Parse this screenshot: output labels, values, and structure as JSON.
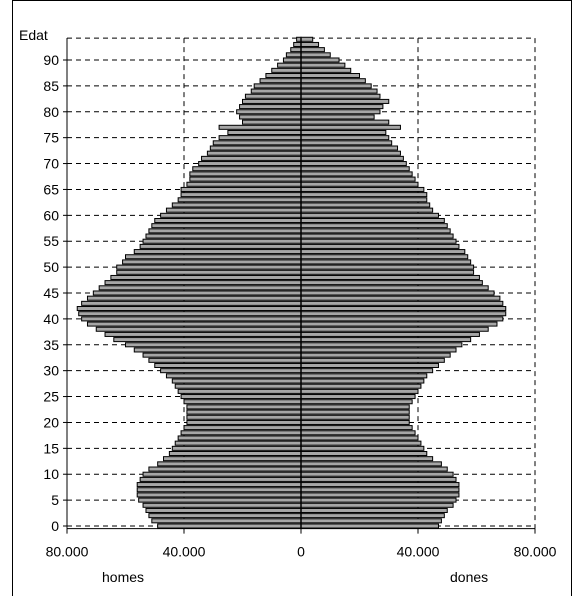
{
  "chart_data": {
    "type": "bar",
    "orientation": "horizontal-pyramid",
    "ylabel": "Edat",
    "xlabel_left": "homes",
    "xlabel_right": "dones",
    "x_tick_labels": [
      "80.000",
      "40.000",
      "0",
      "40.000",
      "80.000"
    ],
    "x_ticks": [
      -80000,
      -40000,
      0,
      40000,
      80000
    ],
    "y_tick_labels": [
      "0",
      "5",
      "10",
      "15",
      "20",
      "25",
      "30",
      "35",
      "40",
      "45",
      "50",
      "55",
      "60",
      "65",
      "70",
      "75",
      "80",
      "85",
      "90"
    ],
    "xlim": [
      -80000,
      80000
    ],
    "ylim": [
      0,
      95
    ],
    "grid": "dashed",
    "bar_color": "#a6a6a6",
    "ages": [
      0,
      1,
      2,
      3,
      4,
      5,
      6,
      7,
      8,
      9,
      10,
      11,
      12,
      13,
      14,
      15,
      16,
      17,
      18,
      19,
      20,
      21,
      22,
      23,
      24,
      25,
      26,
      27,
      28,
      29,
      30,
      31,
      32,
      33,
      34,
      35,
      36,
      37,
      38,
      39,
      40,
      41,
      42,
      43,
      44,
      45,
      46,
      47,
      48,
      49,
      50,
      51,
      52,
      53,
      54,
      55,
      56,
      57,
      58,
      59,
      60,
      61,
      62,
      63,
      64,
      65,
      66,
      67,
      68,
      69,
      70,
      71,
      72,
      73,
      74,
      75,
      76,
      77,
      78,
      79,
      80,
      81,
      82,
      83,
      84,
      85,
      86,
      87,
      88,
      89,
      90,
      91,
      92,
      93,
      94
    ],
    "series": [
      {
        "name": "homes",
        "values": [
          49000,
          51000,
          52000,
          53000,
          54000,
          55500,
          56000,
          56000,
          56000,
          55000,
          54000,
          52000,
          49000,
          47000,
          45000,
          44000,
          43000,
          42000,
          41000,
          40000,
          39000,
          39000,
          39000,
          39000,
          40000,
          41000,
          42000,
          43000,
          44000,
          46000,
          48000,
          50000,
          52000,
          54000,
          57000,
          60000,
          64000,
          67000,
          70000,
          73000,
          75000,
          76000,
          76500,
          75000,
          73000,
          71000,
          69000,
          67000,
          65000,
          63000,
          63000,
          61000,
          60000,
          57000,
          55000,
          54000,
          53000,
          52000,
          51000,
          50000,
          48000,
          46000,
          44000,
          42000,
          41000,
          41000,
          39000,
          38000,
          38000,
          37000,
          35000,
          34000,
          32000,
          31000,
          30000,
          28000,
          25000,
          28000,
          20000,
          21000,
          22000,
          21000,
          20000,
          19000,
          17000,
          16000,
          14000,
          12000,
          10000,
          8000,
          6000,
          5000,
          3500,
          2500,
          1500
        ]
      },
      {
        "name": "dones",
        "values": [
          47000,
          48000,
          49000,
          50000,
          52000,
          53000,
          54000,
          54000,
          54000,
          53000,
          52000,
          50000,
          48000,
          45000,
          43000,
          42000,
          41000,
          40000,
          39000,
          38000,
          37000,
          37000,
          37000,
          37000,
          38000,
          39000,
          40000,
          41000,
          42000,
          43000,
          45000,
          47000,
          49000,
          51000,
          53000,
          55000,
          58000,
          61000,
          64000,
          67000,
          69000,
          70000,
          70000,
          69000,
          68000,
          66000,
          64000,
          62000,
          61000,
          59000,
          59000,
          58000,
          57000,
          56000,
          54000,
          53000,
          52000,
          51000,
          50000,
          49000,
          47000,
          45000,
          44000,
          43000,
          43000,
          42000,
          40000,
          39000,
          38000,
          37000,
          36000,
          35000,
          34000,
          33000,
          31000,
          30000,
          29000,
          34000,
          30000,
          25000,
          27000,
          28000,
          30000,
          27000,
          26000,
          24000,
          22000,
          20000,
          17000,
          15000,
          13000,
          10000,
          8000,
          6000,
          4000
        ]
      }
    ]
  }
}
